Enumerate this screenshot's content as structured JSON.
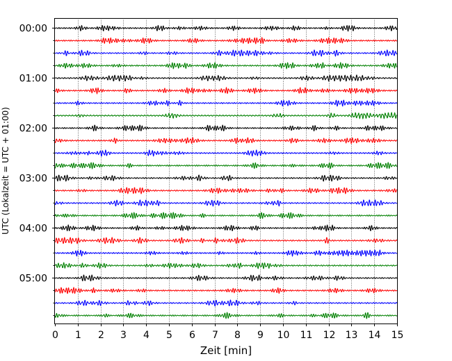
{
  "chart_data": {
    "type": "line",
    "title": "",
    "xlabel": "Zeit  [min]",
    "ylabel": "UTC (Lokalzeit = UTC + 01:00)",
    "xlim": [
      0,
      15
    ],
    "x_ticks": [
      "0",
      "1",
      "2",
      "3",
      "4",
      "5",
      "6",
      "7",
      "8",
      "9",
      "10",
      "11",
      "12",
      "13",
      "14",
      "15"
    ],
    "y_tick_labels": [
      "00:00",
      "01:00",
      "02:00",
      "03:00",
      "04:00",
      "05:00"
    ],
    "grid": "vertical dotted lines at each minute",
    "trace_interval_minutes": 15,
    "trace_colors": [
      "#000000",
      "#ff0000",
      "#0000ff",
      "#008000"
    ],
    "trace_start_times": [
      "00:00",
      "00:15",
      "00:30",
      "00:45",
      "01:00",
      "01:15",
      "01:30",
      "01:45",
      "02:00",
      "02:15",
      "02:30",
      "02:45",
      "03:00",
      "03:15",
      "03:30",
      "03:45",
      "04:00",
      "04:15",
      "04:30",
      "04:45",
      "05:00",
      "05:15",
      "05:30",
      "05:45"
    ]
  }
}
